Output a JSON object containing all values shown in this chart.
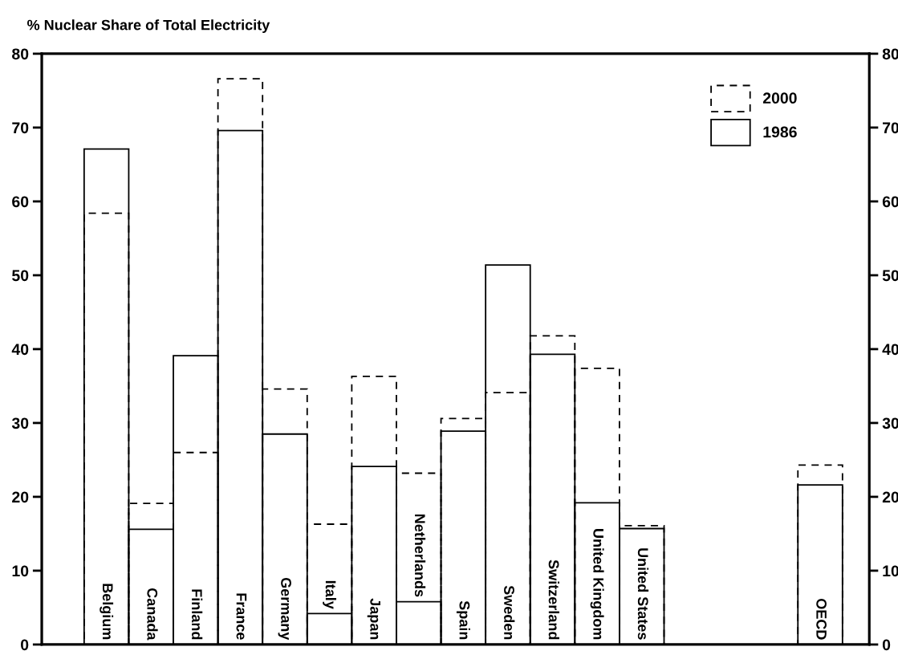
{
  "chart_data": {
    "type": "bar",
    "title": "% Nuclear Share of Total Electricity",
    "categories": [
      "Belgium",
      "Canada",
      "Finland",
      "France",
      "Germany",
      "Italy",
      "Japan",
      "Netherlands",
      "Spain",
      "Sweden",
      "Switzerland",
      "United Kingdom",
      "United States",
      null,
      null,
      null,
      "OECD"
    ],
    "series": [
      {
        "name": "2000",
        "color": "#000000",
        "line_style": "dashed",
        "values": [
          58.4,
          19.1,
          26.0,
          76.6,
          34.6,
          16.3,
          36.3,
          23.2,
          30.6,
          34.1,
          41.8,
          37.4,
          16.1,
          null,
          null,
          null,
          24.3
        ]
      },
      {
        "name": "1986",
        "color": "#000000",
        "line_style": "solid",
        "values": [
          67.1,
          15.6,
          39.1,
          69.6,
          28.5,
          4.2,
          24.1,
          5.8,
          28.9,
          51.4,
          39.3,
          19.2,
          15.7,
          null,
          null,
          null,
          21.6
        ]
      }
    ],
    "ylim": [
      0,
      80
    ],
    "yticks": [
      0,
      10,
      20,
      30,
      40,
      50,
      60,
      70,
      80
    ],
    "y2lim": [
      0,
      80
    ],
    "y2ticks": [
      0,
      10,
      20,
      30,
      40,
      50,
      60,
      70,
      80
    ],
    "grid": false,
    "legend": "top right"
  }
}
